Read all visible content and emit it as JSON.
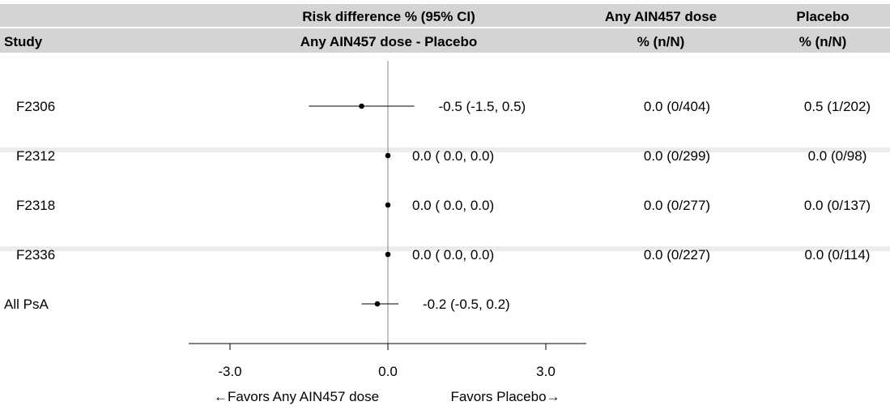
{
  "chart_data": {
    "type": "forest",
    "header": {
      "col_study": "Study",
      "col_rd_line1": "Risk difference % (95% CI)",
      "col_rd_line2": "Any AIN457 dose - Placebo",
      "col_drug_line1": "Any AIN457 dose",
      "col_drug_line2": "% (n/N)",
      "col_placebo_line1": "Placebo",
      "col_placebo_line2": "% (n/N)"
    },
    "rows": [
      {
        "study": "F2306",
        "rd": -0.5,
        "lo": -1.5,
        "hi": 0.5,
        "rd_text": "-0.5 (-1.5,  0.5)",
        "drug_text": "0.0 (0/404)",
        "placebo_text": "0.5 (1/202)",
        "shaded": false
      },
      {
        "study": "F2312",
        "rd": 0.0,
        "lo": 0.0,
        "hi": 0.0,
        "rd_text": "0.0 ( 0.0,  0.0)",
        "drug_text": "0.0 (0/299)",
        "placebo_text": "0.0 (0/98)",
        "shaded": true
      },
      {
        "study": "F2318",
        "rd": 0.0,
        "lo": 0.0,
        "hi": 0.0,
        "rd_text": "0.0 ( 0.0,  0.0)",
        "drug_text": "0.0 (0/277)",
        "placebo_text": "0.0 (0/137)",
        "shaded": false
      },
      {
        "study": "F2336",
        "rd": 0.0,
        "lo": 0.0,
        "hi": 0.0,
        "rd_text": "0.0 ( 0.0,  0.0)",
        "drug_text": "0.0 (0/227)",
        "placebo_text": "0.0 (0/114)",
        "shaded": true
      },
      {
        "study": "All PsA",
        "rd": -0.2,
        "lo": -0.5,
        "hi": 0.2,
        "rd_text": "-0.2 (-0.5,  0.2)",
        "drug_text": "",
        "placebo_text": "",
        "shaded": false
      }
    ],
    "xlim": [
      -4.5,
      4.5
    ],
    "ticks": [
      -3.0,
      0.0,
      3.0
    ],
    "tick_labels": [
      "-3.0",
      "0.0",
      "3.0"
    ],
    "xlabel_left": "←Favors Any AIN457 dose",
    "xlabel_right": "Favors Placebo→",
    "reference_line": 0.0
  }
}
